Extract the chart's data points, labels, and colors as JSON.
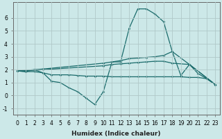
{
  "background_color": "#cce8e8",
  "grid_color": "#b0c8c8",
  "line_color": "#1a6b6b",
  "xlabel": "Humidex (Indice chaleur)",
  "xlim": [
    -0.5,
    23.5
  ],
  "ylim": [
    -1.5,
    7.2
  ],
  "yticks": [
    -1,
    0,
    1,
    2,
    3,
    4,
    5,
    6
  ],
  "xticks": [
    0,
    1,
    2,
    3,
    4,
    5,
    6,
    7,
    8,
    9,
    10,
    11,
    12,
    13,
    14,
    15,
    16,
    17,
    18,
    19,
    20,
    21,
    22,
    23
  ],
  "series": [
    {
      "x": [
        0,
        1,
        2,
        3,
        4,
        5,
        6,
        7,
        8,
        9,
        10,
        11,
        12,
        13,
        14,
        15,
        16,
        17,
        18,
        19,
        20,
        21,
        22,
        23
      ],
      "y": [
        1.9,
        1.85,
        2.0,
        1.75,
        1.1,
        1.0,
        0.6,
        0.3,
        -0.2,
        -0.7,
        0.3,
        2.6,
        2.6,
        5.2,
        6.7,
        6.7,
        6.3,
        5.7,
        3.4,
        1.55,
        2.4,
        1.7,
        1.3,
        0.85
      ]
    },
    {
      "x": [
        0,
        2,
        3,
        10,
        11,
        12,
        13,
        14,
        15,
        16,
        17,
        18,
        20,
        23
      ],
      "y": [
        1.9,
        2.0,
        2.05,
        2.5,
        2.6,
        2.7,
        2.85,
        2.9,
        2.95,
        3.0,
        3.1,
        3.4,
        2.4,
        0.85
      ]
    },
    {
      "x": [
        0,
        2,
        3,
        10,
        11,
        12,
        13,
        14,
        15,
        16,
        17,
        18,
        20,
        23
      ],
      "y": [
        1.9,
        1.95,
        2.0,
        2.3,
        2.4,
        2.45,
        2.5,
        2.55,
        2.6,
        2.65,
        2.65,
        2.5,
        2.4,
        0.85
      ]
    },
    {
      "x": [
        0,
        1,
        2,
        3,
        4,
        5,
        6,
        7,
        8,
        9,
        10,
        11,
        12,
        13,
        14,
        15,
        16,
        17,
        18,
        19,
        20,
        21,
        22,
        23
      ],
      "y": [
        1.9,
        1.85,
        1.85,
        1.75,
        1.6,
        1.6,
        1.6,
        1.55,
        1.5,
        1.5,
        1.5,
        1.45,
        1.45,
        1.45,
        1.45,
        1.45,
        1.45,
        1.45,
        1.45,
        1.45,
        1.4,
        1.4,
        1.3,
        0.85
      ]
    }
  ]
}
